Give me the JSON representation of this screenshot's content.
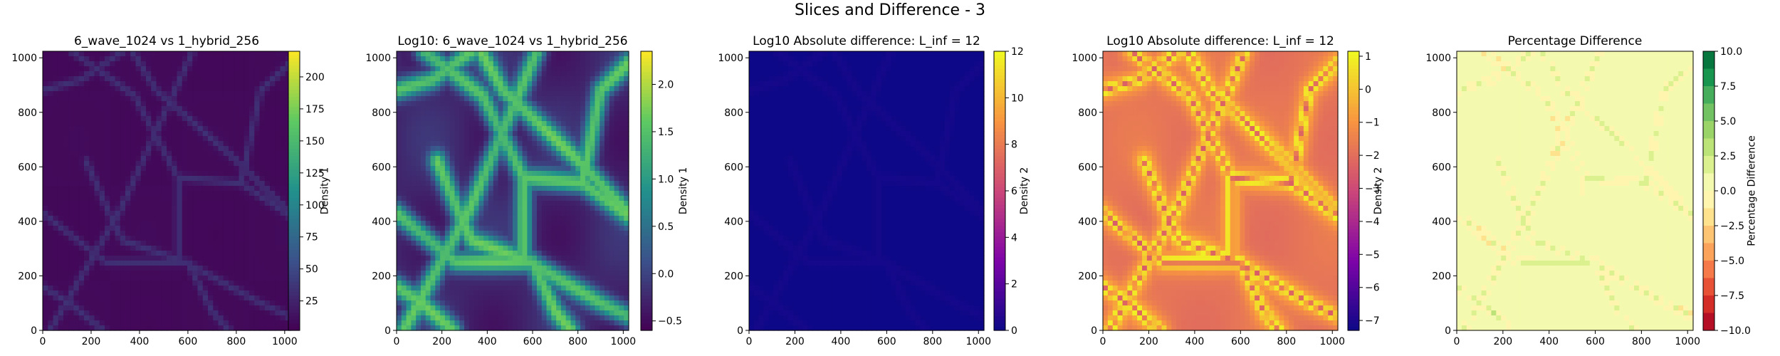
{
  "figure": {
    "suptitle": "Slices and Difference - 3"
  },
  "chart_data": [
    {
      "type": "heatmap",
      "title": "6_wave_1024 vs 1_hybrid_256",
      "colormap": "viridis",
      "xlim": [
        0,
        1024
      ],
      "ylim": [
        0,
        1024
      ],
      "xticks": [
        0,
        200,
        400,
        600,
        800,
        1000
      ],
      "yticks": [
        0,
        200,
        400,
        600,
        800,
        1000
      ],
      "colorbar": {
        "label": "Density 1",
        "range": [
          2,
          220
        ],
        "ticks": [
          25,
          50,
          75,
          100,
          125,
          150,
          175,
          200
        ],
        "tick_labels": [
          "25",
          "50",
          "75",
          "100",
          "125",
          "150",
          "175",
          "200"
        ]
      },
      "field": "linear_density"
    },
    {
      "type": "heatmap",
      "title": "Log10: 6_wave_1024 vs 1_hybrid_256",
      "colormap": "viridis",
      "xlim": [
        0,
        1024
      ],
      "ylim": [
        0,
        1024
      ],
      "xticks": [
        0,
        200,
        400,
        600,
        800,
        1000
      ],
      "yticks": [
        0,
        200,
        400,
        600,
        800,
        1000
      ],
      "colorbar": {
        "label": "Density 1",
        "range": [
          -0.6,
          2.35
        ],
        "ticks": [
          -0.5,
          0.0,
          0.5,
          1.0,
          1.5,
          2.0
        ],
        "tick_labels": [
          "−0.5",
          "0.0",
          "0.5",
          "1.0",
          "1.5",
          "2.0"
        ]
      },
      "field": "log_density"
    },
    {
      "type": "heatmap",
      "title": "Log10 Absolute difference: L_inf = 12",
      "colormap": "plasma",
      "xlim": [
        0,
        1024
      ],
      "ylim": [
        0,
        1024
      ],
      "xticks": [
        0,
        200,
        400,
        600,
        800,
        1000
      ],
      "yticks": [
        0,
        200,
        400,
        600,
        800,
        1000
      ],
      "colorbar": {
        "label": "Density 2",
        "range": [
          0,
          12
        ],
        "ticks": [
          0,
          2,
          4,
          6,
          8,
          10,
          12
        ],
        "tick_labels": [
          "0",
          "2",
          "4",
          "6",
          "8",
          "10",
          "12"
        ]
      },
      "field": "abs_difference"
    },
    {
      "type": "heatmap",
      "title": "Log10 Absolute difference: L_inf = 12",
      "colormap": "plasma",
      "xlim": [
        0,
        1024
      ],
      "ylim": [
        0,
        1024
      ],
      "xticks": [
        0,
        200,
        400,
        600,
        800,
        1000
      ],
      "yticks": [
        0,
        200,
        400,
        600,
        800,
        1000
      ],
      "colorbar": {
        "label": "Density 2",
        "range": [
          -7.3,
          1.15
        ],
        "ticks": [
          -7,
          -6,
          -5,
          -4,
          -3,
          -2,
          -1,
          0,
          1
        ],
        "tick_labels": [
          "−7",
          "−6",
          "−5",
          "−4",
          "−3",
          "−2",
          "−1",
          "0",
          "1"
        ]
      },
      "field": "log_abs_difference"
    },
    {
      "type": "heatmap",
      "title": "Percentage Difference",
      "colormap": "RdYlGn",
      "xlim": [
        0,
        1024
      ],
      "ylim": [
        0,
        1024
      ],
      "xticks": [
        0,
        200,
        400,
        600,
        800,
        1000
      ],
      "yticks": [
        0,
        200,
        400,
        600,
        800,
        1000
      ],
      "colorbar": {
        "label": "Percentage Difference",
        "range": [
          -10,
          10
        ],
        "ticks": [
          -10,
          -7.5,
          -5,
          -2.5,
          0,
          2.5,
          5,
          7.5,
          10
        ],
        "tick_labels": [
          "−10.0",
          "−7.5",
          "−5.0",
          "−2.5",
          "0.0",
          "2.5",
          "5.0",
          "7.5",
          "10.0"
        ],
        "levels": 16
      },
      "field": "percentage_difference"
    }
  ]
}
